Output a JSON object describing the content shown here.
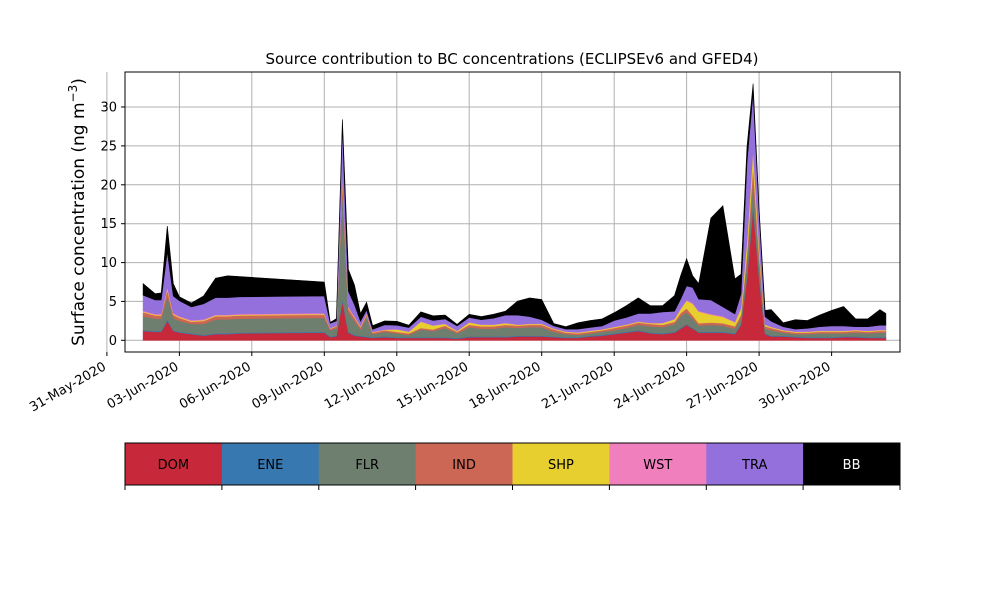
{
  "chart_data": {
    "type": "area",
    "title": "Source contribution to BC concentrations (ECLIPSEv6 and GFED4)",
    "xlabel": "",
    "ylabel": "Surface concentration (ng m",
    "ylabel_sup": "−3",
    "ylabel_close": ")",
    "ylim": [
      -1.5,
      34.5
    ],
    "yticks": [
      0,
      5,
      10,
      15,
      20,
      25,
      30
    ],
    "xlim": [
      "2020-05-31T18:00",
      "2020-07-02T20:00"
    ],
    "xticks": [
      "2020-05-31",
      "2020-06-03",
      "2020-06-06",
      "2020-06-09",
      "2020-06-12",
      "2020-06-15",
      "2020-06-18",
      "2020-06-21",
      "2020-06-24",
      "2020-06-27",
      "2020-06-30"
    ],
    "xtick_labels": [
      "31-May-2020",
      "03-Jun-2020",
      "06-Jun-2020",
      "09-Jun-2020",
      "12-Jun-2020",
      "15-Jun-2020",
      "18-Jun-2020",
      "21-Jun-2020",
      "24-Jun-2020",
      "27-Jun-2020",
      "30-Jun-2020"
    ],
    "grid": true,
    "stacked": true,
    "legend_position": "bottom",
    "categories": [
      "DOM",
      "ENE",
      "FLR",
      "IND",
      "SHP",
      "WST",
      "TRA",
      "BB"
    ],
    "colors": [
      "#c7293a",
      "#3778b0",
      "#6e7f6f",
      "#cc6655",
      "#e6cf2e",
      "#f07fbd",
      "#9370db",
      "#000000"
    ],
    "legend_text_colors": [
      "#000000",
      "#000000",
      "#000000",
      "#000000",
      "#000000",
      "#000000",
      "#000000",
      "#ffffff"
    ],
    "x": [
      "2020-06-01T12:00",
      "2020-06-02T00:00",
      "2020-06-02T06:00",
      "2020-06-02T12:00",
      "2020-06-02T18:00",
      "2020-06-03T00:00",
      "2020-06-03T12:00",
      "2020-06-04T00:00",
      "2020-06-04T12:00",
      "2020-06-05T00:00",
      "2020-06-05T12:00",
      "2020-06-09T00:00",
      "2020-06-09T06:00",
      "2020-06-09T12:00",
      "2020-06-09T18:00",
      "2020-06-10T00:00",
      "2020-06-10T06:00",
      "2020-06-10T12:00",
      "2020-06-10T18:00",
      "2020-06-11T00:00",
      "2020-06-11T12:00",
      "2020-06-12T00:00",
      "2020-06-12T12:00",
      "2020-06-13T00:00",
      "2020-06-13T12:00",
      "2020-06-14T00:00",
      "2020-06-14T12:00",
      "2020-06-15T00:00",
      "2020-06-15T12:00",
      "2020-06-16T00:00",
      "2020-06-16T12:00",
      "2020-06-17T00:00",
      "2020-06-17T12:00",
      "2020-06-18T00:00",
      "2020-06-18T12:00",
      "2020-06-19T00:00",
      "2020-06-19T12:00",
      "2020-06-20T00:00",
      "2020-06-20T12:00",
      "2020-06-21T00:00",
      "2020-06-21T12:00",
      "2020-06-22T00:00",
      "2020-06-22T12:00",
      "2020-06-23T00:00",
      "2020-06-23T12:00",
      "2020-06-23T18:00",
      "2020-06-24T00:00",
      "2020-06-24T06:00",
      "2020-06-24T12:00",
      "2020-06-25T00:00",
      "2020-06-25T12:00",
      "2020-06-26T00:00",
      "2020-06-26T06:00",
      "2020-06-26T12:00",
      "2020-06-26T18:00",
      "2020-06-27T00:00",
      "2020-06-27T06:00",
      "2020-06-27T12:00",
      "2020-06-28T00:00",
      "2020-06-28T12:00",
      "2020-06-29T00:00",
      "2020-06-29T12:00",
      "2020-06-30T00:00",
      "2020-06-30T12:00",
      "2020-07-01T00:00",
      "2020-07-01T12:00",
      "2020-07-02T00:00",
      "2020-07-02T06:00"
    ],
    "series": [
      {
        "name": "DOM",
        "values": [
          1.2,
          1.1,
          1.1,
          2.5,
          1.2,
          1.0,
          0.8,
          0.6,
          0.8,
          0.8,
          0.9,
          1.0,
          0.4,
          0.5,
          5.0,
          1.0,
          0.6,
          0.5,
          0.4,
          0.3,
          0.4,
          0.3,
          0.3,
          0.3,
          0.3,
          0.3,
          0.2,
          0.4,
          0.4,
          0.4,
          0.4,
          0.5,
          0.5,
          0.5,
          0.4,
          0.3,
          0.3,
          0.5,
          0.6,
          0.8,
          1.0,
          1.2,
          0.9,
          0.8,
          1.0,
          1.5,
          2.0,
          1.5,
          1.0,
          1.0,
          1.0,
          0.8,
          2.0,
          8.0,
          17.0,
          8.0,
          0.8,
          0.5,
          0.5,
          0.4,
          0.3,
          0.3,
          0.3,
          0.4,
          0.4,
          0.3,
          0.3,
          0.3
        ]
      },
      {
        "name": "ENE",
        "values": [
          0.1,
          0.1,
          0.1,
          0.2,
          0.1,
          0.1,
          0.1,
          0.1,
          0.1,
          0.1,
          0.1,
          0.1,
          0.1,
          0.1,
          0.3,
          0.1,
          0.1,
          0.1,
          0.1,
          0.1,
          0.1,
          0.1,
          0.1,
          0.1,
          0.1,
          0.1,
          0.1,
          0.1,
          0.1,
          0.1,
          0.1,
          0.1,
          0.1,
          0.1,
          0.1,
          0.1,
          0.1,
          0.1,
          0.1,
          0.1,
          0.1,
          0.1,
          0.1,
          0.1,
          0.1,
          0.1,
          0.1,
          0.1,
          0.1,
          0.1,
          0.1,
          0.1,
          0.1,
          0.2,
          0.5,
          0.2,
          0.1,
          0.1,
          0.1,
          0.1,
          0.1,
          0.1,
          0.1,
          0.1,
          0.1,
          0.1,
          0.1,
          0.1
        ]
      },
      {
        "name": "FLR",
        "values": [
          1.8,
          1.6,
          1.6,
          3.0,
          1.6,
          1.4,
          1.2,
          1.4,
          1.8,
          1.8,
          1.8,
          1.8,
          0.8,
          1.0,
          14.0,
          2.5,
          1.8,
          0.8,
          2.5,
          0.4,
          0.6,
          0.5,
          0.3,
          1.0,
          0.8,
          1.2,
          0.6,
          1.2,
          1.0,
          1.0,
          1.2,
          1.0,
          1.1,
          1.1,
          0.6,
          0.4,
          0.3,
          0.3,
          0.4,
          0.4,
          0.5,
          0.7,
          0.8,
          0.8,
          1.0,
          1.5,
          1.5,
          1.2,
          0.8,
          0.9,
          0.8,
          0.6,
          0.8,
          2.0,
          3.0,
          2.0,
          0.6,
          0.7,
          0.4,
          0.3,
          0.4,
          0.5,
          0.5,
          0.4,
          0.5,
          0.5,
          0.6,
          0.6
        ]
      },
      {
        "name": "IND",
        "values": [
          0.5,
          0.4,
          0.4,
          0.8,
          0.4,
          0.4,
          0.3,
          0.4,
          0.4,
          0.4,
          0.4,
          0.4,
          0.2,
          0.2,
          1.5,
          0.5,
          0.4,
          0.3,
          0.3,
          0.2,
          0.2,
          0.2,
          0.2,
          0.2,
          0.2,
          0.3,
          0.2,
          0.3,
          0.3,
          0.3,
          0.3,
          0.3,
          0.3,
          0.3,
          0.3,
          0.2,
          0.2,
          0.2,
          0.2,
          0.3,
          0.3,
          0.3,
          0.3,
          0.3,
          0.3,
          0.4,
          0.5,
          0.4,
          0.3,
          0.3,
          0.3,
          0.3,
          0.4,
          1.0,
          2.0,
          1.0,
          0.3,
          0.3,
          0.2,
          0.2,
          0.2,
          0.2,
          0.2,
          0.2,
          0.2,
          0.2,
          0.2,
          0.2
        ]
      },
      {
        "name": "SHP",
        "values": [
          0.1,
          0.1,
          0.1,
          0.2,
          0.1,
          0.1,
          0.1,
          0.1,
          0.1,
          0.1,
          0.1,
          0.1,
          0.05,
          0.05,
          0.3,
          0.1,
          0.1,
          0.1,
          0.1,
          0.05,
          0.05,
          0.3,
          0.2,
          0.8,
          0.5,
          0.2,
          0.1,
          0.3,
          0.2,
          0.2,
          0.2,
          0.1,
          0.1,
          0.1,
          0.1,
          0.1,
          0.1,
          0.1,
          0.1,
          0.1,
          0.1,
          0.1,
          0.1,
          0.2,
          0.3,
          0.5,
          1.0,
          1.5,
          1.5,
          1.0,
          0.8,
          0.5,
          0.8,
          1.5,
          2.0,
          1.0,
          0.2,
          0.1,
          0.1,
          0.1,
          0.1,
          0.1,
          0.1,
          0.1,
          0.1,
          0.1,
          0.1,
          0.1
        ]
      },
      {
        "name": "WST",
        "values": [
          0.1,
          0.1,
          0.1,
          0.2,
          0.1,
          0.1,
          0.1,
          0.1,
          0.1,
          0.1,
          0.1,
          0.1,
          0.05,
          0.05,
          0.3,
          0.1,
          0.1,
          0.05,
          0.1,
          0.05,
          0.05,
          0.05,
          0.05,
          0.05,
          0.05,
          0.05,
          0.05,
          0.05,
          0.05,
          0.05,
          0.05,
          0.05,
          0.05,
          0.05,
          0.05,
          0.05,
          0.05,
          0.05,
          0.05,
          0.05,
          0.05,
          0.05,
          0.05,
          0.05,
          0.05,
          0.1,
          0.1,
          0.1,
          0.1,
          0.1,
          0.1,
          0.1,
          0.1,
          0.2,
          0.3,
          0.2,
          0.05,
          0.05,
          0.05,
          0.05,
          0.05,
          0.05,
          0.05,
          0.05,
          0.05,
          0.05,
          0.05,
          0.05
        ]
      },
      {
        "name": "TRA",
        "values": [
          2.0,
          1.8,
          1.8,
          4.5,
          2.2,
          2.0,
          1.7,
          2.0,
          2.2,
          2.2,
          2.2,
          2.2,
          0.6,
          0.6,
          6.0,
          2.0,
          1.5,
          0.6,
          0.4,
          0.3,
          0.6,
          0.5,
          0.5,
          0.6,
          0.6,
          0.6,
          0.6,
          0.6,
          0.6,
          0.8,
          1.0,
          1.2,
          0.9,
          0.5,
          0.3,
          0.3,
          0.4,
          0.4,
          0.4,
          0.8,
          0.9,
          1.0,
          1.2,
          1.4,
          1.0,
          1.2,
          1.8,
          2.0,
          1.5,
          1.8,
          1.2,
          1.0,
          1.8,
          10.0,
          7.0,
          4.0,
          1.0,
          0.7,
          0.4,
          0.3,
          0.4,
          0.5,
          0.6,
          0.6,
          0.4,
          0.5,
          0.6,
          0.6
        ]
      },
      {
        "name": "BB",
        "values": [
          1.5,
          0.8,
          0.9,
          3.3,
          1.6,
          0.5,
          0.5,
          1.0,
          2.5,
          2.8,
          2.6,
          1.8,
          0.1,
          0.3,
          1.0,
          2.8,
          2.5,
          1.0,
          1.0,
          0.5,
          0.5,
          0.5,
          0.3,
          0.6,
          0.6,
          0.5,
          0.2,
          0.4,
          0.4,
          0.5,
          0.5,
          1.8,
          2.4,
          2.6,
          0.3,
          0.3,
          0.8,
          0.9,
          0.9,
          1.0,
          1.5,
          2.0,
          1.0,
          0.8,
          2.0,
          3.0,
          3.5,
          1.5,
          2.0,
          10.5,
          13.0,
          4.5,
          2.5,
          2.0,
          1.2,
          0.5,
          0.8,
          1.5,
          0.5,
          1.2,
          1.0,
          1.5,
          2.0,
          2.5,
          1.0,
          1.0,
          2.0,
          1.5
        ]
      }
    ]
  }
}
